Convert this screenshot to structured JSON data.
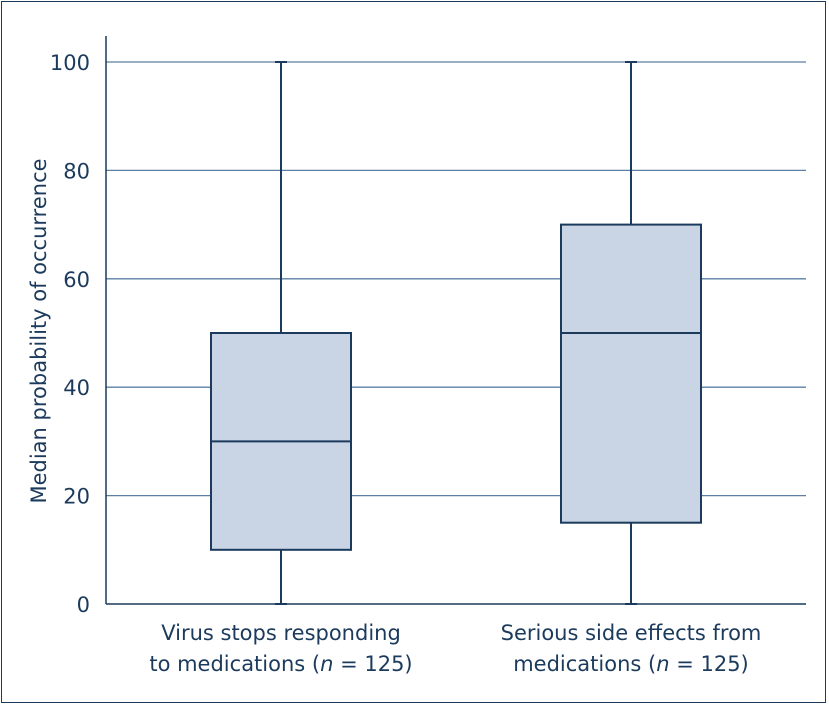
{
  "chart_data": {
    "type": "box",
    "title": "",
    "ylabel": "Median probability of occurrence",
    "xlabel": "",
    "ylim": [
      0,
      100
    ],
    "yticks": [
      0,
      20,
      40,
      60,
      80,
      100
    ],
    "grid": true,
    "colors": {
      "box_fill": "#c9d5e5",
      "stroke": "#1b3a5c",
      "grid": "#5c7fa3"
    },
    "categories": [
      {
        "line1": "Virus stops responding",
        "line2_prefix": "to medications (",
        "n_var": "n",
        "line2_suffix": " = 125)"
      },
      {
        "line1": "Serious side effects from",
        "line2_prefix": "medications (",
        "n_var": "n",
        "line2_suffix": " = 125)"
      }
    ],
    "boxes": [
      {
        "min": 0,
        "q1": 10,
        "median": 30,
        "q3": 50,
        "max": 100
      },
      {
        "min": 0,
        "q1": 15,
        "median": 50,
        "q3": 70,
        "max": 100
      }
    ]
  }
}
